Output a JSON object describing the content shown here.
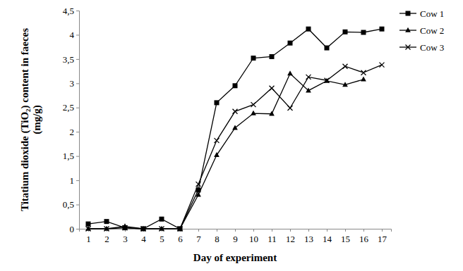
{
  "chart_data": {
    "type": "line",
    "x_label": "Day of experiment",
    "y_label": "Titatium dioxide (TiO₂) content in faeces (mg/g)",
    "x": [
      1,
      2,
      3,
      4,
      5,
      6,
      7,
      8,
      9,
      10,
      11,
      12,
      13,
      14,
      15,
      16,
      17
    ],
    "xlim": [
      0.5,
      17.5
    ],
    "xticks": [
      1,
      2,
      3,
      4,
      5,
      6,
      7,
      8,
      9,
      10,
      11,
      12,
      13,
      14,
      15,
      16,
      17
    ],
    "ylim": [
      0,
      4.5
    ],
    "yticks": [
      0,
      {
        "value": 0.5,
        "label": "0,5"
      },
      1,
      {
        "value": 1.5,
        "label": "1,5"
      },
      2,
      {
        "value": 2.5,
        "label": "2,5"
      },
      3,
      {
        "value": 3.5,
        "label": "3,5"
      },
      4,
      {
        "value": 4.5,
        "label": "4,5"
      }
    ],
    "grid": false,
    "legend": "right",
    "series": [
      {
        "name": "Cow 1",
        "color": "#000000",
        "marker": "square",
        "values": [
          0.1,
          0.15,
          0.02,
          0,
          0.2,
          0,
          0.8,
          2.6,
          2.95,
          3.52,
          3.55,
          3.83,
          4.12,
          3.73,
          4.06,
          4.05,
          4.12
        ]
      },
      {
        "name": "Cow 2",
        "color": "#000000",
        "marker": "triangle",
        "values": [
          0,
          0,
          0.05,
          0,
          0,
          0,
          0.7,
          1.52,
          2.08,
          2.38,
          2.37,
          3.2,
          2.85,
          3.05,
          2.97,
          3.08,
          null
        ]
      },
      {
        "name": "Cow 3",
        "color": "#000000",
        "marker": "x",
        "values": [
          0,
          0,
          0.02,
          0,
          0,
          0,
          0.92,
          1.82,
          2.42,
          2.56,
          2.9,
          2.49,
          3.13,
          3.06,
          3.35,
          3.22,
          3.38
        ]
      }
    ]
  }
}
